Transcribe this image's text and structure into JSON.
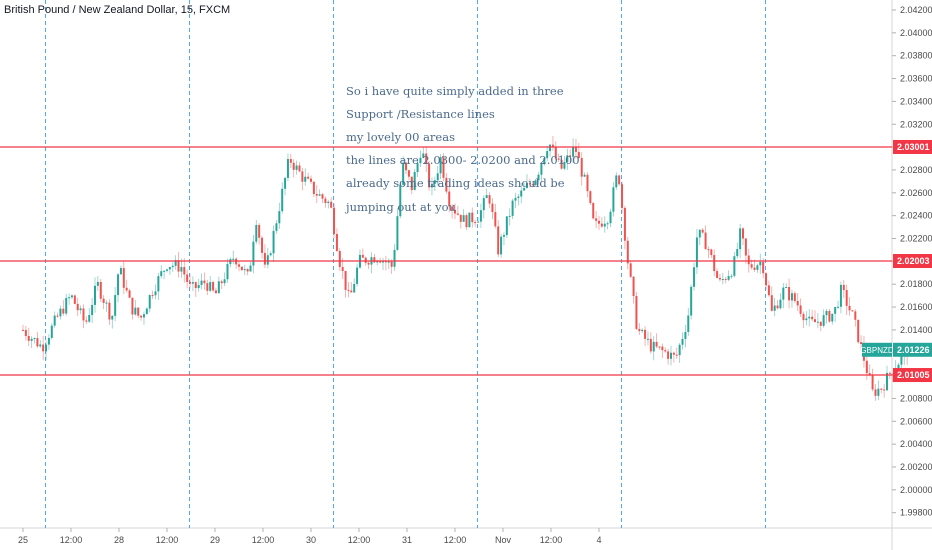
{
  "chart_title": "British Pound / New Zealand Dollar, 15, FXCM",
  "annotation": [
    "So i have quite simply added in three",
    "Support /Resistance lines",
    "my lovely 00 areas",
    "the lines are 2.0300- 2.0200 and 2.0100",
    "already some trading ideas should be",
    "jumping out at you"
  ],
  "colors": {
    "up": "#26a69a",
    "down": "#ef5350",
    "line": "#f23645",
    "session": "#2196f3",
    "symbol_tag": "#26a69a"
  },
  "chart_data": {
    "type": "candlestick",
    "symbol": "GBPNZD",
    "last_price": "2.01226",
    "ylim": [
      1.997,
      2.043
    ],
    "y_ticks": [
      "2.04200",
      "2.04000",
      "2.03800",
      "2.03600",
      "2.03400",
      "2.03200",
      "2.03000",
      "2.02800",
      "2.02600",
      "2.02400",
      "2.02200",
      "2.02000",
      "2.01800",
      "2.01600",
      "2.01400",
      "2.01200",
      "2.01000",
      "2.00800",
      "2.00600",
      "2.00400",
      "2.00200",
      "2.00000",
      "1.99800"
    ],
    "x_ticks": [
      "25",
      "12:00",
      "28",
      "12:00",
      "29",
      "12:00",
      "30",
      "12:00",
      "31",
      "12:00",
      "Nov",
      "12:00",
      "4"
    ],
    "session_breaks": [
      0.5,
      3.5,
      6.5,
      9.5,
      12.5,
      15.5
    ],
    "horizontal_lines": [
      {
        "value": 2.03001,
        "label": "2.03001"
      },
      {
        "value": 2.02003,
        "label": "2.02003"
      },
      {
        "value": 2.01005,
        "label": "2.01005"
      }
    ],
    "path": [
      [
        0.0,
        2.014
      ],
      [
        0.4,
        2.0125
      ],
      [
        0.7,
        2.015
      ],
      [
        1.0,
        2.017
      ],
      [
        1.3,
        2.0145
      ],
      [
        1.55,
        2.018
      ],
      [
        1.85,
        2.015
      ],
      [
        2.0,
        2.0195
      ],
      [
        2.25,
        2.016
      ],
      [
        2.45,
        2.015
      ],
      [
        2.7,
        2.0175
      ],
      [
        3.0,
        2.0198
      ],
      [
        3.3,
        2.0195
      ],
      [
        3.5,
        2.0175
      ],
      [
        3.8,
        2.0182
      ],
      [
        4.0,
        2.017
      ],
      [
        4.4,
        2.0205
      ],
      [
        4.7,
        2.0185
      ],
      [
        4.85,
        2.024
      ],
      [
        5.05,
        2.019
      ],
      [
        5.4,
        2.026
      ],
      [
        5.55,
        2.029
      ],
      [
        5.8,
        2.0275
      ],
      [
        6.1,
        2.026
      ],
      [
        6.4,
        2.025
      ],
      [
        6.6,
        2.02
      ],
      [
        6.8,
        2.0165
      ],
      [
        7.0,
        2.02
      ],
      [
        7.4,
        2.0205
      ],
      [
        7.7,
        2.0195
      ],
      [
        7.9,
        2.0285
      ],
      [
        8.1,
        2.0265
      ],
      [
        8.3,
        2.03
      ],
      [
        8.5,
        2.026
      ],
      [
        8.7,
        2.029
      ],
      [
        8.9,
        2.025
      ],
      [
        9.2,
        2.0235
      ],
      [
        9.5,
        2.024
      ],
      [
        9.7,
        2.026
      ],
      [
        9.9,
        2.021
      ],
      [
        10.2,
        2.025
      ],
      [
        10.4,
        2.026
      ],
      [
        10.7,
        2.0275
      ],
      [
        10.95,
        2.0305
      ],
      [
        11.2,
        2.028
      ],
      [
        11.5,
        2.03
      ],
      [
        11.7,
        2.027
      ],
      [
        11.9,
        2.023
      ],
      [
        12.2,
        2.024
      ],
      [
        12.4,
        2.028
      ],
      [
        12.6,
        2.02
      ],
      [
        12.8,
        2.014
      ],
      [
        13.1,
        2.0125
      ],
      [
        13.4,
        2.012
      ],
      [
        13.6,
        2.0115
      ],
      [
        13.85,
        2.015
      ],
      [
        14.05,
        2.0225
      ],
      [
        14.25,
        2.0215
      ],
      [
        14.5,
        2.018
      ],
      [
        14.8,
        2.0195
      ],
      [
        14.95,
        2.0225
      ],
      [
        15.1,
        2.0195
      ],
      [
        15.4,
        2.02
      ],
      [
        15.6,
        2.0155
      ],
      [
        15.85,
        2.0175
      ],
      [
        16.1,
        2.0165
      ],
      [
        16.4,
        2.0145
      ],
      [
        16.7,
        2.015
      ],
      [
        16.9,
        2.0155
      ],
      [
        17.05,
        2.0175
      ],
      [
        17.3,
        2.015
      ],
      [
        17.55,
        2.011
      ],
      [
        17.7,
        2.0085
      ],
      [
        17.9,
        2.009
      ],
      [
        18.1,
        2.0105
      ],
      [
        18.3,
        2.0115
      ],
      [
        18.45,
        2.0123
      ]
    ]
  }
}
